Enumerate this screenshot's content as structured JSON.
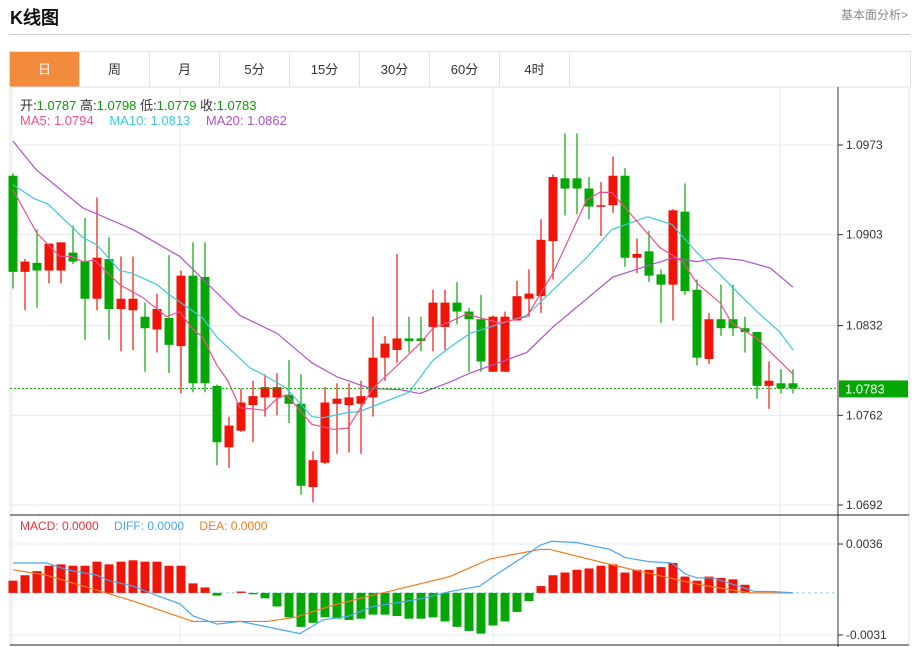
{
  "header": {
    "title": "K线图",
    "link": "基本面分析>"
  },
  "tabs": [
    "日",
    "周",
    "月",
    "5分",
    "15分",
    "30分",
    "60分",
    "4时"
  ],
  "active_tab": 0,
  "ohlc": {
    "open_label": "开:",
    "open": "1.0787",
    "high_label": "高:",
    "high": "1.0798",
    "low_label": "低:",
    "low": "1.0779",
    "close_label": "收:",
    "close": "1.0783"
  },
  "ma": {
    "ma5_label": "MA5: 1.0794",
    "ma10_label": "MA10: 1.0813",
    "ma20_label": "MA20: 1.0862"
  },
  "macd_legend": {
    "macd": "MACD: 0.0000",
    "diff": "DIFF: 0.0000",
    "dea": "DEA: 0.0000"
  },
  "colors": {
    "up": "#f01407",
    "down": "#04a704",
    "ma5": "#f0508a",
    "ma10": "#3ec8e2",
    "ma20": "#b050c8",
    "diff": "#4aa6f2",
    "dea": "#f57a1e",
    "accent": "#f28b3c"
  },
  "chart_data": {
    "type": "candlestick",
    "price_axis": {
      "ticks": [
        "1.0973",
        "1.0903",
        "1.0832",
        "1.0762",
        "1.0692"
      ],
      "range": [
        1.0692,
        1.0973
      ]
    },
    "current_price": "1.0783",
    "candles_ohlc": [
      [
        1.0949,
        1.0951,
        1.0861,
        1.0874
      ],
      [
        1.0874,
        1.0884,
        1.0844,
        1.0882
      ],
      [
        1.0881,
        1.0907,
        1.0846,
        1.0875
      ],
      [
        1.0875,
        1.0896,
        1.0865,
        1.0896
      ],
      [
        1.0875,
        1.0897,
        1.0865,
        1.0897
      ],
      [
        1.0889,
        1.091,
        1.088,
        1.0882
      ],
      [
        1.0882,
        1.0916,
        1.0821,
        1.0853
      ],
      [
        1.0853,
        1.0932,
        1.0844,
        1.0885
      ],
      [
        1.0884,
        1.0901,
        1.0821,
        1.0845
      ],
      [
        1.0845,
        1.0886,
        1.0812,
        1.0853
      ],
      [
        1.0844,
        1.0886,
        1.0813,
        1.0853
      ],
      [
        1.0839,
        1.085,
        1.0796,
        1.083
      ],
      [
        1.0829,
        1.0857,
        1.0811,
        1.0845
      ],
      [
        1.0838,
        1.0887,
        1.0795,
        1.0817
      ],
      [
        1.0816,
        1.0875,
        1.0779,
        1.0871
      ],
      [
        1.0871,
        1.0897,
        1.078,
        1.0787
      ],
      [
        1.087,
        1.0897,
        1.078,
        1.0787
      ],
      [
        1.0785,
        1.0786,
        1.0723,
        1.0741
      ],
      [
        1.0737,
        1.0761,
        1.0721,
        1.0754
      ],
      [
        1.075,
        1.0783,
        1.0749,
        1.0772
      ],
      [
        1.077,
        1.0789,
        1.0741,
        1.0777
      ],
      [
        1.0776,
        1.0794,
        1.0761,
        1.0784
      ],
      [
        1.0776,
        1.0795,
        1.0762,
        1.0784
      ],
      [
        1.0778,
        1.0805,
        1.0756,
        1.0771
      ],
      [
        1.0771,
        1.0794,
        1.07,
        1.0707
      ],
      [
        1.0706,
        1.0734,
        1.0694,
        1.0727
      ],
      [
        1.0725,
        1.0784,
        1.0724,
        1.0772
      ],
      [
        1.0771,
        1.0787,
        1.0732,
        1.0775
      ],
      [
        1.077,
        1.0787,
        1.0733,
        1.0776
      ],
      [
        1.0771,
        1.0789,
        1.0732,
        1.0777
      ],
      [
        1.0776,
        1.0839,
        1.0761,
        1.0807
      ],
      [
        1.0807,
        1.0824,
        1.0789,
        1.0818
      ],
      [
        1.0813,
        1.0888,
        1.0803,
        1.0822
      ],
      [
        1.0822,
        1.0839,
        1.0811,
        1.082
      ],
      [
        1.0822,
        1.0839,
        1.0812,
        1.082
      ],
      [
        1.0831,
        1.086,
        1.0812,
        1.085
      ],
      [
        1.0831,
        1.086,
        1.0813,
        1.085
      ],
      [
        1.085,
        1.0866,
        1.0833,
        1.0843
      ],
      [
        1.0843,
        1.0846,
        1.0796,
        1.0837
      ],
      [
        1.0837,
        1.0856,
        1.0796,
        1.0804
      ],
      [
        1.0796,
        1.084,
        1.0796,
        1.0839
      ],
      [
        1.0796,
        1.0843,
        1.0796,
        1.0839
      ],
      [
        1.0836,
        1.0867,
        1.0836,
        1.0855
      ],
      [
        1.0853,
        1.0876,
        1.0839,
        1.0857
      ],
      [
        1.0855,
        1.0915,
        1.0842,
        1.0899
      ],
      [
        1.0898,
        1.095,
        1.0868,
        1.0948
      ],
      [
        1.0947,
        1.0982,
        1.0918,
        1.0939
      ],
      [
        1.0947,
        1.0982,
        1.0919,
        1.0939
      ],
      [
        1.0939,
        1.0948,
        1.0915,
        1.0925
      ],
      [
        1.0925,
        1.0944,
        1.0902,
        1.0926
      ],
      [
        1.0926,
        1.0964,
        1.092,
        1.0949
      ],
      [
        1.0949,
        1.0955,
        1.0878,
        1.0885
      ],
      [
        1.0885,
        1.09,
        1.0873,
        1.0888
      ],
      [
        1.089,
        1.0906,
        1.0866,
        1.0871
      ],
      [
        1.0872,
        1.0876,
        1.0834,
        1.0864
      ],
      [
        1.0864,
        1.0923,
        1.0836,
        1.0922
      ],
      [
        1.0921,
        1.0943,
        1.0856,
        1.0859
      ],
      [
        1.086,
        1.0868,
        1.0801,
        1.0807
      ],
      [
        1.0806,
        1.0842,
        1.0802,
        1.0837
      ],
      [
        1.0837,
        1.0864,
        1.0824,
        1.083
      ],
      [
        1.0837,
        1.0864,
        1.0824,
        1.083
      ],
      [
        1.083,
        1.0839,
        1.0811,
        1.0827
      ],
      [
        1.0827,
        1.0827,
        1.0775,
        1.0785
      ],
      [
        1.0785,
        1.0804,
        1.0767,
        1.0789
      ],
      [
        1.0787,
        1.0798,
        1.0779,
        1.0783
      ],
      [
        1.0787,
        1.0798,
        1.0779,
        1.0783
      ]
    ],
    "ma5": [
      [
        0,
        1.0938
      ],
      [
        2,
        1.0904
      ],
      [
        3.9,
        1.0886
      ],
      [
        4.9,
        1.0886
      ],
      [
        5.8,
        1.0882
      ],
      [
        6.8,
        1.0883
      ],
      [
        8.9,
        1.0864
      ],
      [
        10.8,
        1.0854
      ],
      [
        12.8,
        1.0839
      ],
      [
        13.9,
        1.0843
      ],
      [
        14.9,
        1.083
      ],
      [
        15.8,
        1.0823
      ],
      [
        17,
        1.0801
      ],
      [
        17.9,
        1.0789
      ],
      [
        18.9,
        1.0768
      ],
      [
        21,
        1.0766
      ],
      [
        22,
        1.0775
      ],
      [
        22.8,
        1.0778
      ],
      [
        24.9,
        1.0755
      ],
      [
        26.7,
        1.0751
      ],
      [
        27.9,
        1.0752
      ],
      [
        30,
        1.0783
      ],
      [
        32.25,
        1.0803
      ],
      [
        33.9,
        1.0818
      ],
      [
        35,
        1.083
      ],
      [
        36.4,
        1.0835
      ],
      [
        37.8,
        1.0841
      ],
      [
        40.6,
        1.0834
      ],
      [
        42.8,
        1.0839
      ],
      [
        45,
        1.0873
      ],
      [
        47.8,
        1.093
      ],
      [
        48.9,
        1.0936
      ],
      [
        49.9,
        1.0936
      ],
      [
        53.9,
        1.0893
      ],
      [
        55.8,
        1.0882
      ],
      [
        57,
        1.0865
      ],
      [
        58.9,
        1.085
      ],
      [
        59.9,
        1.0834
      ],
      [
        62,
        1.0822
      ],
      [
        65,
        1.0794
      ]
    ],
    "ma10": [
      [
        0,
        1.0942
      ],
      [
        1.8,
        1.0931
      ],
      [
        2.9,
        1.0927
      ],
      [
        5.8,
        1.0901
      ],
      [
        7,
        1.0895
      ],
      [
        8.9,
        1.0875
      ],
      [
        9.9,
        1.0873
      ],
      [
        12,
        1.0864
      ],
      [
        12.9,
        1.0857
      ],
      [
        15.8,
        1.0838
      ],
      [
        17,
        1.0823
      ],
      [
        19.75,
        1.0799
      ],
      [
        21,
        1.0793
      ],
      [
        22.8,
        1.0783
      ],
      [
        24.9,
        1.0761
      ],
      [
        25.8,
        1.076
      ],
      [
        27.8,
        1.0764
      ],
      [
        28.9,
        1.0765
      ],
      [
        33,
        1.078
      ],
      [
        35,
        1.0805
      ],
      [
        36.4,
        1.0815
      ],
      [
        38.1,
        1.0826
      ],
      [
        42.8,
        1.084
      ],
      [
        47.8,
        1.0885
      ],
      [
        49.9,
        1.0907
      ],
      [
        52.9,
        1.0917
      ],
      [
        54.9,
        1.0911
      ],
      [
        57,
        1.0889
      ],
      [
        58.9,
        1.0872
      ],
      [
        60.8,
        1.0854
      ],
      [
        62,
        1.0843
      ],
      [
        63.9,
        1.0827
      ],
      [
        65,
        1.0813
      ]
    ],
    "ma20": [
      [
        0,
        1.0976
      ],
      [
        1.9,
        1.0954
      ],
      [
        5.8,
        1.0924
      ],
      [
        10,
        1.0907
      ],
      [
        13.9,
        1.0886
      ],
      [
        18.9,
        1.084
      ],
      [
        22,
        1.0826
      ],
      [
        24.9,
        1.0803
      ],
      [
        27,
        1.0792
      ],
      [
        29.75,
        1.0783
      ],
      [
        32.25,
        1.0782
      ],
      [
        33.9,
        1.0779
      ],
      [
        36.4,
        1.0788
      ],
      [
        38.1,
        1.0795
      ],
      [
        42.8,
        1.0811
      ],
      [
        45,
        1.0831
      ],
      [
        50,
        1.087
      ],
      [
        55,
        1.0885
      ],
      [
        57,
        1.0882
      ],
      [
        58.9,
        1.0885
      ],
      [
        60.8,
        1.0883
      ],
      [
        63.1,
        1.0877
      ],
      [
        65,
        1.0862
      ]
    ],
    "macd_axis": {
      "ticks": [
        "0.0036",
        "-0.0031"
      ],
      "range": [
        -0.0031,
        0.0036
      ]
    },
    "macd_hist": [
      0.0009,
      0.0013,
      0.0016,
      0.002,
      0.0021,
      0.002,
      0.002,
      0.0023,
      0.0021,
      0.0023,
      0.0024,
      0.0023,
      0.0023,
      0.002,
      0.002,
      0.0007,
      0.0004,
      -0.0002,
      0.0,
      0.0001,
      -0.0001,
      -0.0004,
      -0.001,
      -0.0018,
      -0.0025,
      -0.0022,
      -0.0018,
      -0.0019,
      -0.002,
      -0.0019,
      -0.0016,
      -0.0016,
      -0.0017,
      -0.0019,
      -0.0019,
      -0.0018,
      -0.0021,
      -0.0025,
      -0.0028,
      -0.003,
      -0.0024,
      -0.0021,
      -0.0014,
      -0.0006,
      0.0005,
      0.0013,
      0.0015,
      0.0017,
      0.0018,
      0.002,
      0.0021,
      0.0015,
      0.0017,
      0.0017,
      0.0019,
      0.0022,
      0.0012,
      0.0009,
      0.0012,
      0.0011,
      0.001,
      0.0006,
      0.0,
      0.0,
      0.0,
      0.0
    ],
    "diff": [
      [
        0,
        0.0022
      ],
      [
        2.8,
        0.0022
      ],
      [
        4.5,
        0.0017
      ],
      [
        7,
        0.0013
      ],
      [
        8,
        0.0009
      ],
      [
        10,
        0.0005
      ],
      [
        12,
        -0.0002
      ],
      [
        13.9,
        -0.0008
      ],
      [
        15,
        -0.0017
      ],
      [
        17,
        -0.0023
      ],
      [
        18.9,
        -0.0021
      ],
      [
        21.2,
        -0.0025
      ],
      [
        23.9,
        -0.003
      ],
      [
        25.8,
        -0.002
      ],
      [
        28,
        -0.0017
      ],
      [
        30,
        -0.001
      ],
      [
        32.25,
        -0.0007
      ],
      [
        34.2,
        -0.0004
      ],
      [
        36.4,
        0.0001
      ],
      [
        38.9,
        0.0005
      ],
      [
        40,
        0.0012
      ],
      [
        42.8,
        0.0028
      ],
      [
        43.9,
        0.0035
      ],
      [
        44.9,
        0.0038
      ],
      [
        47,
        0.0037
      ],
      [
        49.75,
        0.0032
      ],
      [
        51,
        0.0026
      ],
      [
        53,
        0.0023
      ],
      [
        54.9,
        0.0022
      ],
      [
        56,
        0.0014
      ],
      [
        57,
        0.0011
      ],
      [
        58.3,
        0.0011
      ],
      [
        60.8,
        0.0004
      ],
      [
        61.8,
        0.0001
      ],
      [
        63.3,
        0.0001
      ],
      [
        65,
        0.0
      ]
    ],
    "dea": [
      [
        0,
        0.0017
      ],
      [
        2.8,
        0.0013
      ],
      [
        7,
        0.0002
      ],
      [
        10,
        -0.0006
      ],
      [
        15,
        -0.0021
      ],
      [
        17,
        -0.0021
      ],
      [
        21.2,
        -0.0021
      ],
      [
        23.5,
        -0.0018
      ],
      [
        26.7,
        -0.0009
      ],
      [
        30.8,
        0.0
      ],
      [
        36.4,
        0.0012
      ],
      [
        39.75,
        0.0025
      ],
      [
        43.9,
        0.0032
      ],
      [
        44.75,
        0.0032
      ],
      [
        49.75,
        0.0021
      ],
      [
        54.2,
        0.0012
      ],
      [
        57.25,
        0.0006
      ],
      [
        61.4,
        0.0
      ],
      [
        65,
        0.0
      ]
    ]
  }
}
